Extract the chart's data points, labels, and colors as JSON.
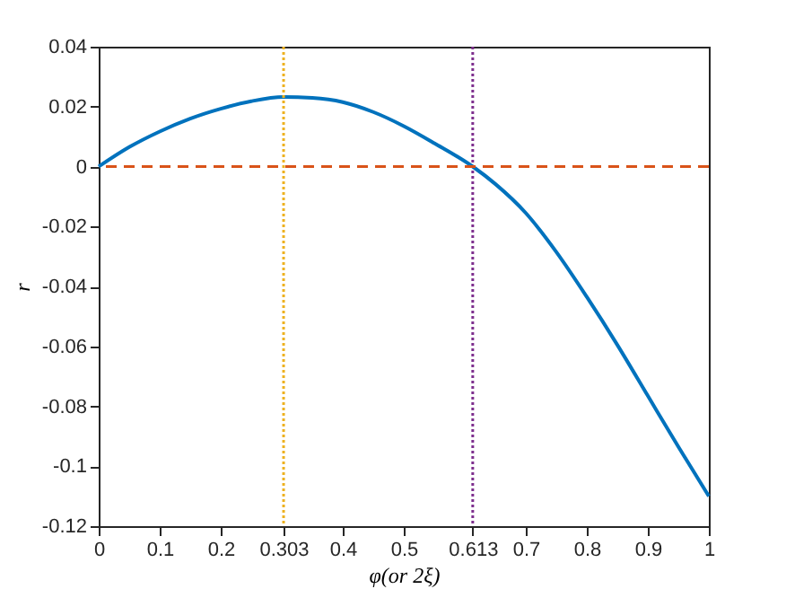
{
  "chart_data": {
    "type": "line",
    "xlabel": "φ(or 2ξ)",
    "ylabel": "r",
    "x": [
      0,
      0.05,
      0.1,
      0.15,
      0.2,
      0.25,
      0.303,
      0.35,
      0.4,
      0.45,
      0.5,
      0.55,
      0.613,
      0.65,
      0.7,
      0.75,
      0.8,
      0.85,
      0.9,
      0.95,
      1
    ],
    "series": [
      {
        "color": "#0072bd",
        "values": [
          0,
          0.0065,
          0.0117,
          0.016,
          0.0193,
          0.0218,
          0.0232,
          0.0229,
          0.0215,
          0.0182,
          0.0135,
          0.0078,
          0,
          -0.0058,
          -0.0155,
          -0.0285,
          -0.0435,
          -0.0595,
          -0.0765,
          -0.0935,
          -0.11
        ]
      }
    ],
    "xlim": [
      0,
      1
    ],
    "ylim": [
      -0.12,
      0.04
    ],
    "xticks": [
      0,
      0.1,
      0.2,
      0.303,
      0.4,
      0.5,
      0.613,
      0.7,
      0.8,
      0.9,
      1
    ],
    "yticks": [
      -0.12,
      -0.1,
      -0.08,
      -0.06,
      -0.04,
      -0.02,
      0,
      0.02,
      0.04
    ],
    "ref_lines": [
      {
        "axis": "y",
        "value": 0,
        "color": "#d95319",
        "line_style": "dashed"
      },
      {
        "axis": "x",
        "value": 0.303,
        "color": "#edb120",
        "line_style": "dotted"
      },
      {
        "axis": "x",
        "value": 0.613,
        "color": "#7e2f8e",
        "line_style": "dotted"
      }
    ],
    "grid": false,
    "marker": "none",
    "line_style": "solid"
  }
}
